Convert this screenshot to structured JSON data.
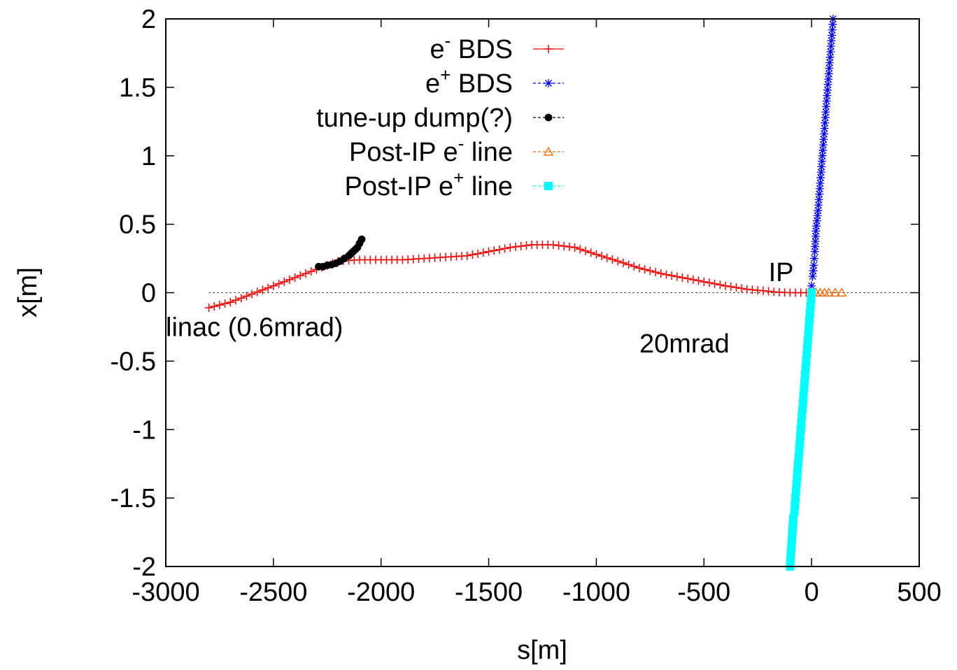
{
  "chart_data": {
    "type": "line",
    "xlabel": "s[m]",
    "ylabel": "x[m]",
    "xlim": [
      -3000,
      500
    ],
    "ylim": [
      -2,
      2
    ],
    "x_ticks": [
      "-3000",
      "-2500",
      "-2000",
      "-1500",
      "-1000",
      "-500",
      "0",
      "500"
    ],
    "y_ticks": [
      "2",
      "1.5",
      "1",
      "0.5",
      "0",
      "-0.5",
      "-1",
      "-1.5",
      "-2"
    ],
    "grid": false,
    "legend_position": "top-center",
    "reference_line_y": 0,
    "annotations": [
      {
        "text": "linac (0.6mrad)",
        "x": -3000,
        "y": -0.25
      },
      {
        "text": "20mrad",
        "x": -800,
        "y": -0.37
      },
      {
        "text": "IP",
        "x": -200,
        "y": 0.15
      }
    ],
    "series": [
      {
        "name": "BDS",
        "name_prefix": "e",
        "name_superscript": "-",
        "color": "#ff0000",
        "marker": "plus",
        "points": [
          [
            -2800,
            -0.11
          ],
          [
            -2700,
            -0.07
          ],
          [
            -2600,
            -0.01
          ],
          [
            -2500,
            0.05
          ],
          [
            -2400,
            0.11
          ],
          [
            -2300,
            0.17
          ],
          [
            -2250,
            0.2
          ],
          [
            -2200,
            0.23
          ],
          [
            -2100,
            0.24
          ],
          [
            -2000,
            0.24
          ],
          [
            -1900,
            0.24
          ],
          [
            -1800,
            0.25
          ],
          [
            -1700,
            0.26
          ],
          [
            -1600,
            0.27
          ],
          [
            -1500,
            0.3
          ],
          [
            -1400,
            0.33
          ],
          [
            -1300,
            0.35
          ],
          [
            -1250,
            0.35
          ],
          [
            -1200,
            0.35
          ],
          [
            -1100,
            0.33
          ],
          [
            -1000,
            0.28
          ],
          [
            -900,
            0.23
          ],
          [
            -800,
            0.18
          ],
          [
            -700,
            0.14
          ],
          [
            -600,
            0.11
          ],
          [
            -500,
            0.08
          ],
          [
            -400,
            0.05
          ],
          [
            -300,
            0.025
          ],
          [
            -200,
            0.01
          ],
          [
            -150,
            0.003
          ],
          [
            -100,
            0.0
          ],
          [
            -50,
            0.0
          ],
          [
            0,
            0.0
          ]
        ]
      },
      {
        "name": "BDS",
        "name_prefix": "e",
        "name_superscript": "+",
        "color": "#0000ff",
        "marker": "star",
        "points": [
          [
            0,
            0.05
          ],
          [
            5,
            0.12
          ],
          [
            10,
            0.2
          ],
          [
            15,
            0.3
          ],
          [
            20,
            0.45
          ],
          [
            30,
            0.6
          ],
          [
            40,
            0.8
          ],
          [
            50,
            1.0
          ],
          [
            60,
            1.2
          ],
          [
            70,
            1.4
          ],
          [
            80,
            1.6
          ],
          [
            90,
            1.8
          ],
          [
            100,
            2.0
          ]
        ]
      },
      {
        "name": "tune-up dump(?)",
        "color": "#000000",
        "marker": "circle",
        "points": [
          [
            -2290,
            0.19
          ],
          [
            -2270,
            0.19
          ],
          [
            -2250,
            0.2
          ],
          [
            -2230,
            0.205
          ],
          [
            -2210,
            0.215
          ],
          [
            -2190,
            0.23
          ],
          [
            -2170,
            0.25
          ],
          [
            -2150,
            0.27
          ],
          [
            -2130,
            0.3
          ],
          [
            -2110,
            0.33
          ],
          [
            -2100,
            0.36
          ],
          [
            -2090,
            0.39
          ]
        ]
      },
      {
        "name": "Post-IP line",
        "name_prefix": "Post-IP e",
        "name_superscript": "-",
        "name_suffix": " line",
        "color": "#ff6600",
        "marker": "triangle",
        "points": [
          [
            0,
            0.0
          ],
          [
            20,
            0.0
          ],
          [
            40,
            0.0
          ],
          [
            60,
            0.0
          ],
          [
            80,
            0.0
          ],
          [
            140,
            0.0
          ]
        ]
      },
      {
        "name": "Post-IP line",
        "name_prefix": "Post-IP e",
        "name_superscript": "+",
        "name_suffix": " line",
        "color": "#00ffff",
        "marker": "square",
        "points": [
          [
            0,
            0.0
          ],
          [
            -5,
            -0.1
          ],
          [
            -10,
            -0.2
          ],
          [
            -15,
            -0.3
          ],
          [
            -20,
            -0.4
          ],
          [
            -25,
            -0.5
          ],
          [
            -30,
            -0.6
          ],
          [
            -35,
            -0.7
          ],
          [
            -40,
            -0.8
          ],
          [
            -45,
            -0.9
          ],
          [
            -50,
            -1.0
          ],
          [
            -55,
            -1.1
          ],
          [
            -60,
            -1.2
          ],
          [
            -65,
            -1.3
          ],
          [
            -70,
            -1.4
          ],
          [
            -75,
            -1.5
          ],
          [
            -80,
            -1.6
          ],
          [
            -85,
            -1.65
          ],
          [
            -100,
            -2.0
          ]
        ]
      }
    ]
  }
}
